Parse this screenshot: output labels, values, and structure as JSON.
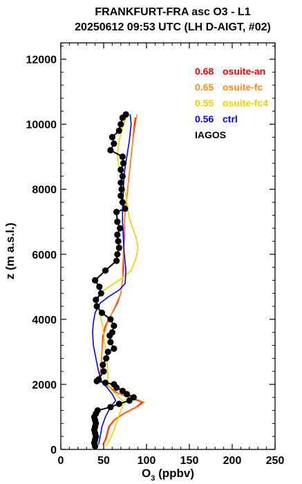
{
  "chart_data": {
    "type": "line",
    "title_line1": "FRANKFURT-FRA asc O3 - L1",
    "title_line2": "20250612 09:53 UTC (LH D-AIGT, #02)",
    "xlabel_main": "O",
    "xlabel_sub": "3",
    "xlabel_rest": " (ppbv)",
    "ylabel": "z (m a.s.l.)",
    "xlim": [
      0,
      250
    ],
    "ylim": [
      0,
      12500
    ],
    "xticks": [
      "0",
      "50",
      "100",
      "150",
      "200",
      "250"
    ],
    "yticks": [
      "0",
      "2000",
      "4000",
      "6000",
      "8000",
      "10000",
      "12000"
    ],
    "legend": [
      {
        "score": "0.68",
        "name": "osuite-an",
        "color": "#ff0000"
      },
      {
        "score": "0.65",
        "name": "osuite-fc",
        "color": "#ff8c1a"
      },
      {
        "score": "0.55",
        "name": "osuite-fc4",
        "color": "#f2d000"
      },
      {
        "score": "0.56",
        "name": "ctrl",
        "color": "#0000ff"
      },
      {
        "score": "",
        "name": "IAGOS",
        "color": "#000000"
      }
    ],
    "series": [
      {
        "name": "osuite-an",
        "color": "#ff0000",
        "points": [
          [
            49,
            150
          ],
          [
            52,
            300
          ],
          [
            54,
            500
          ],
          [
            56,
            700
          ],
          [
            62,
            900
          ],
          [
            73,
            1100
          ],
          [
            88,
            1300
          ],
          [
            95,
            1450
          ],
          [
            80,
            1600
          ],
          [
            65,
            1750
          ],
          [
            55,
            1950
          ],
          [
            47,
            2100
          ],
          [
            45,
            2250
          ],
          [
            47,
            2500
          ],
          [
            48,
            3000
          ],
          [
            49,
            3500
          ],
          [
            52,
            3800
          ],
          [
            58,
            4100
          ],
          [
            66,
            4500
          ],
          [
            70,
            4800
          ],
          [
            72,
            5200
          ],
          [
            73,
            5600
          ],
          [
            73,
            6000
          ],
          [
            74,
            6500
          ],
          [
            74,
            7000
          ],
          [
            76,
            7500
          ],
          [
            78,
            8000
          ],
          [
            80,
            8500
          ],
          [
            82,
            9000
          ],
          [
            84,
            9500
          ],
          [
            86,
            10000
          ],
          [
            87,
            10200
          ]
        ]
      },
      {
        "name": "osuite-fc",
        "color": "#ff8c1a",
        "points": [
          [
            50,
            150
          ],
          [
            53,
            300
          ],
          [
            55,
            500
          ],
          [
            57,
            700
          ],
          [
            63,
            900
          ],
          [
            74,
            1100
          ],
          [
            89,
            1300
          ],
          [
            97,
            1450
          ],
          [
            82,
            1600
          ],
          [
            66,
            1750
          ],
          [
            56,
            1950
          ],
          [
            48,
            2100
          ],
          [
            46,
            2250
          ],
          [
            47,
            2500
          ],
          [
            48,
            3000
          ],
          [
            50,
            3500
          ],
          [
            53,
            3800
          ],
          [
            58,
            4100
          ],
          [
            65,
            4500
          ],
          [
            70,
            4800
          ],
          [
            72,
            5200
          ],
          [
            72,
            5600
          ],
          [
            73,
            6000
          ],
          [
            73,
            6500
          ],
          [
            74,
            7000
          ],
          [
            76,
            7500
          ],
          [
            78,
            8000
          ],
          [
            80,
            8500
          ],
          [
            82,
            9000
          ],
          [
            84,
            9500
          ],
          [
            87,
            10000
          ],
          [
            89,
            10300
          ]
        ]
      },
      {
        "name": "osuite-fc4",
        "color": "#f2d000",
        "points": [
          [
            53,
            100
          ],
          [
            57,
            300
          ],
          [
            62,
            600
          ],
          [
            66,
            900
          ],
          [
            70,
            1200
          ],
          [
            74,
            1450
          ],
          [
            68,
            1600
          ],
          [
            60,
            1800
          ],
          [
            54,
            2000
          ],
          [
            55,
            2300
          ],
          [
            54,
            2700
          ],
          [
            52,
            3100
          ],
          [
            50,
            3500
          ],
          [
            49,
            3800
          ],
          [
            45,
            4200
          ],
          [
            42,
            4500
          ],
          [
            46,
            4800
          ],
          [
            56,
            5000
          ],
          [
            68,
            5200
          ],
          [
            82,
            5500
          ],
          [
            88,
            5900
          ],
          [
            90,
            6200
          ],
          [
            88,
            6500
          ],
          [
            84,
            6800
          ],
          [
            80,
            7100
          ],
          [
            78,
            7400
          ],
          [
            76,
            7800
          ],
          [
            72,
            8200
          ],
          [
            68,
            8700
          ],
          [
            66,
            9000
          ],
          [
            68,
            9500
          ],
          [
            72,
            9900
          ],
          [
            76,
            10200
          ]
        ]
      },
      {
        "name": "ctrl",
        "color": "#0000ff",
        "points": [
          [
            44,
            150
          ],
          [
            46,
            400
          ],
          [
            48,
            700
          ],
          [
            52,
            1000
          ],
          [
            58,
            1300
          ],
          [
            64,
            1500
          ],
          [
            60,
            1700
          ],
          [
            54,
            1900
          ],
          [
            47,
            2100
          ],
          [
            44,
            2400
          ],
          [
            41,
            2800
          ],
          [
            38,
            3200
          ],
          [
            37,
            3600
          ],
          [
            38,
            3900
          ],
          [
            40,
            4200
          ],
          [
            46,
            4500
          ],
          [
            56,
            4700
          ],
          [
            68,
            4900
          ],
          [
            75,
            5100
          ],
          [
            76,
            5500
          ],
          [
            74,
            6000
          ],
          [
            73,
            6500
          ],
          [
            72,
            7000
          ],
          [
            72,
            7500
          ],
          [
            73,
            8000
          ],
          [
            74,
            8500
          ],
          [
            77,
            9000
          ],
          [
            80,
            9500
          ],
          [
            82,
            10000
          ],
          [
            81,
            10300
          ]
        ]
      },
      {
        "name": "IAGOS",
        "color": "#000000",
        "markers": true,
        "points": [
          [
            40,
            100
          ],
          [
            39,
            200
          ],
          [
            40,
            300
          ],
          [
            41,
            400
          ],
          [
            40,
            500
          ],
          [
            39,
            600
          ],
          [
            40,
            700
          ],
          [
            41,
            800
          ],
          [
            40,
            900
          ],
          [
            39,
            1000
          ],
          [
            41,
            1100
          ],
          [
            43,
            1200
          ],
          [
            58,
            1300
          ],
          [
            68,
            1400
          ],
          [
            80,
            1500
          ],
          [
            85,
            1600
          ],
          [
            77,
            1700
          ],
          [
            72,
            1800
          ],
          [
            65,
            1900
          ],
          [
            62,
            2000
          ],
          [
            52,
            2050
          ],
          [
            42,
            2100
          ],
          [
            44,
            2150
          ],
          [
            50,
            2400
          ],
          [
            49,
            2600
          ],
          [
            53,
            2800
          ],
          [
            55,
            3000
          ],
          [
            62,
            3100
          ],
          [
            58,
            3300
          ],
          [
            57,
            3500
          ],
          [
            60,
            3600
          ],
          [
            62,
            3800
          ],
          [
            58,
            4000
          ],
          [
            48,
            4200
          ],
          [
            42,
            4400
          ],
          [
            41,
            4600
          ],
          [
            47,
            4800
          ],
          [
            45,
            5000
          ],
          [
            40,
            5200
          ],
          [
            52,
            5500
          ],
          [
            65,
            5800
          ],
          [
            66,
            6000
          ],
          [
            68,
            6200
          ],
          [
            67,
            6400
          ],
          [
            66,
            6600
          ],
          [
            69,
            6800
          ],
          [
            66,
            7000
          ],
          [
            65,
            7300
          ],
          [
            75,
            7400
          ],
          [
            72,
            7600
          ],
          [
            70,
            7800
          ],
          [
            71,
            8000
          ],
          [
            70,
            8200
          ],
          [
            72,
            8400
          ],
          [
            70,
            8600
          ],
          [
            73,
            8800
          ],
          [
            72,
            9000
          ],
          [
            58,
            9200
          ],
          [
            62,
            9400
          ],
          [
            60,
            9600
          ],
          [
            68,
            9800
          ],
          [
            70,
            10000
          ],
          [
            72,
            10200
          ],
          [
            76,
            10300
          ]
        ]
      }
    ]
  }
}
